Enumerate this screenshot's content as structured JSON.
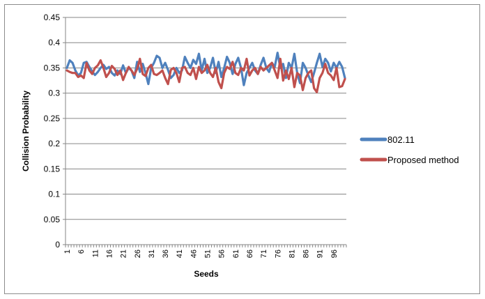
{
  "chart_data": {
    "type": "line",
    "title": "",
    "xlabel": "Seeds",
    "ylabel": "Collision Probability",
    "ylim": [
      0,
      0.45
    ],
    "yticks": [
      "0",
      "0.05",
      "0.1",
      "0.15",
      "0.2",
      "0.25",
      "0.3",
      "0.35",
      "0.4",
      "0.45"
    ],
    "grid": true,
    "legend_position": "right",
    "x_tick_labels": [
      "1",
      "6",
      "11",
      "16",
      "21",
      "26",
      "31",
      "36",
      "41",
      "46",
      "51",
      "56",
      "61",
      "66",
      "71",
      "76",
      "81",
      "86",
      "91",
      "96"
    ],
    "x": [
      1,
      2,
      3,
      4,
      5,
      6,
      7,
      8,
      9,
      10,
      11,
      12,
      13,
      14,
      15,
      16,
      17,
      18,
      19,
      20,
      21,
      22,
      23,
      24,
      25,
      26,
      27,
      28,
      29,
      30,
      31,
      32,
      33,
      34,
      35,
      36,
      37,
      38,
      39,
      40,
      41,
      42,
      43,
      44,
      45,
      46,
      47,
      48,
      49,
      50,
      51,
      52,
      53,
      54,
      55,
      56,
      57,
      58,
      59,
      60,
      61,
      62,
      63,
      64,
      65,
      66,
      67,
      68,
      69,
      70,
      71,
      72,
      73,
      74,
      75,
      76,
      77,
      78,
      79,
      80,
      81,
      82,
      83,
      84,
      85,
      86,
      87,
      88,
      89,
      90,
      91,
      92,
      93,
      94,
      95,
      96,
      97,
      98,
      99,
      100
    ],
    "series": [
      {
        "name": "802.11",
        "color": "#4f81bd",
        "values": [
          0.35,
          0.365,
          0.36,
          0.345,
          0.335,
          0.34,
          0.36,
          0.362,
          0.352,
          0.343,
          0.336,
          0.342,
          0.35,
          0.356,
          0.348,
          0.352,
          0.34,
          0.335,
          0.345,
          0.338,
          0.355,
          0.34,
          0.35,
          0.345,
          0.33,
          0.362,
          0.342,
          0.358,
          0.34,
          0.318,
          0.35,
          0.36,
          0.374,
          0.37,
          0.35,
          0.36,
          0.346,
          0.33,
          0.336,
          0.35,
          0.34,
          0.345,
          0.372,
          0.36,
          0.35,
          0.366,
          0.358,
          0.378,
          0.345,
          0.368,
          0.34,
          0.35,
          0.37,
          0.34,
          0.362,
          0.332,
          0.35,
          0.372,
          0.36,
          0.338,
          0.358,
          0.37,
          0.35,
          0.316,
          0.34,
          0.35,
          0.36,
          0.345,
          0.338,
          0.356,
          0.37,
          0.35,
          0.342,
          0.36,
          0.352,
          0.38,
          0.35,
          0.358,
          0.33,
          0.36,
          0.35,
          0.378,
          0.34,
          0.32,
          0.36,
          0.35,
          0.335,
          0.322,
          0.34,
          0.36,
          0.378,
          0.352,
          0.368,
          0.36,
          0.343,
          0.36,
          0.35,
          0.362,
          0.352,
          0.33
        ],
        "_note": ""
      },
      {
        "name": "Proposed method",
        "color": "#c0504d",
        "values": [
          0.345,
          0.342,
          0.34,
          0.34,
          0.332,
          0.335,
          0.33,
          0.36,
          0.345,
          0.338,
          0.35,
          0.355,
          0.365,
          0.35,
          0.332,
          0.34,
          0.354,
          0.348,
          0.336,
          0.345,
          0.326,
          0.34,
          0.352,
          0.345,
          0.336,
          0.348,
          0.368,
          0.338,
          0.334,
          0.35,
          0.356,
          0.338,
          0.336,
          0.34,
          0.345,
          0.33,
          0.318,
          0.346,
          0.35,
          0.34,
          0.322,
          0.35,
          0.352,
          0.34,
          0.336,
          0.35,
          0.328,
          0.352,
          0.34,
          0.345,
          0.356,
          0.34,
          0.332,
          0.35,
          0.322,
          0.31,
          0.34,
          0.352,
          0.348,
          0.362,
          0.34,
          0.336,
          0.35,
          0.345,
          0.368,
          0.335,
          0.345,
          0.35,
          0.338,
          0.352,
          0.345,
          0.35,
          0.355,
          0.36,
          0.345,
          0.33,
          0.368,
          0.325,
          0.345,
          0.328,
          0.35,
          0.312,
          0.34,
          0.335,
          0.306,
          0.33,
          0.34,
          0.345,
          0.31,
          0.302,
          0.33,
          0.34,
          0.358,
          0.34,
          0.335,
          0.326,
          0.35,
          0.312,
          0.314,
          0.328
        ]
      }
    ]
  }
}
